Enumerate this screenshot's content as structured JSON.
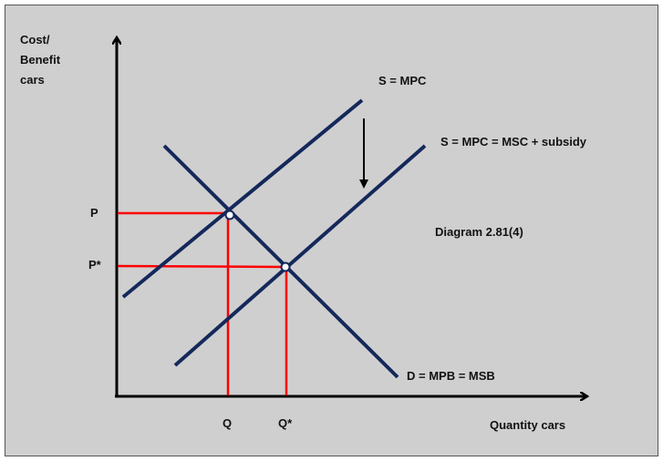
{
  "y_axis_label": [
    "Cost/",
    "Benefit",
    "cars"
  ],
  "x_axis_label": "Quantity cars",
  "curves": {
    "supply_original": "S = MPC",
    "supply_subsidy": "S = MPC = MSC + subsidy",
    "demand": "D = MPB = MSB"
  },
  "diagram_title": "Diagram 2.81(4)",
  "price_labels": {
    "p": "P",
    "p_star": "P*"
  },
  "quantity_labels": {
    "q": "Q",
    "q_star": "Q*"
  },
  "colors": {
    "background": "#d0cfd0",
    "curve": "#14285a",
    "guide": "#ff0000",
    "axis": "#000000"
  }
}
